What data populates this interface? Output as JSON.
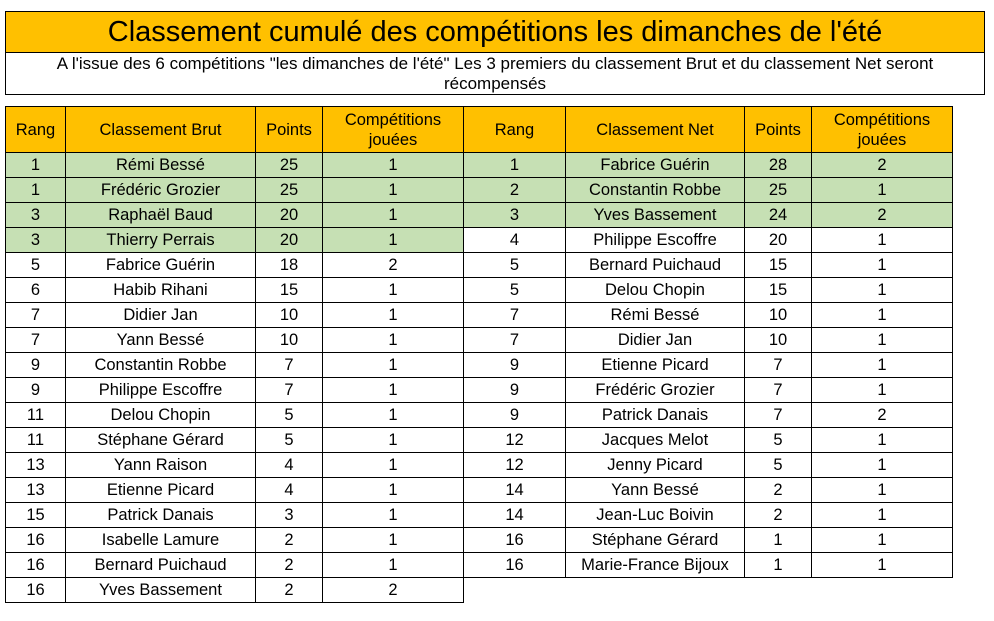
{
  "title": "Classement cumulé des compétitions les dimanches de l'été",
  "subtitle": "A l'issue des 6 compétitions \"les dimanches de l'été\" Les 3 premiers du classement Brut et du classement Net seront récompensés",
  "headers": {
    "rang": "Rang",
    "brut": "Classement Brut",
    "points": "Points",
    "comp": "Compétitions jouées",
    "rang_net": "Rang",
    "net": "Classement Net",
    "points_net": "Points",
    "comp_net": "Compétitions jouées"
  },
  "highlight_color": "#c6e0b4",
  "header_color": "#ffc000",
  "brut": [
    {
      "rang": "1",
      "nom": "Rémi Bessé",
      "points": "25",
      "comp": "1",
      "hl": true
    },
    {
      "rang": "1",
      "nom": "Frédéric Grozier",
      "points": "25",
      "comp": "1",
      "hl": true
    },
    {
      "rang": "3",
      "nom": "Raphaël Baud",
      "points": "20",
      "comp": "1",
      "hl": true
    },
    {
      "rang": "3",
      "nom": "Thierry Perrais",
      "points": "20",
      "comp": "1",
      "hl": true
    },
    {
      "rang": "5",
      "nom": "Fabrice Guérin",
      "points": "18",
      "comp": "2",
      "hl": false
    },
    {
      "rang": "6",
      "nom": "Habib Rihani",
      "points": "15",
      "comp": "1",
      "hl": false
    },
    {
      "rang": "7",
      "nom": "Didier Jan",
      "points": "10",
      "comp": "1",
      "hl": false
    },
    {
      "rang": "7",
      "nom": "Yann Bessé",
      "points": "10",
      "comp": "1",
      "hl": false
    },
    {
      "rang": "9",
      "nom": "Constantin Robbe",
      "points": "7",
      "comp": "1",
      "hl": false
    },
    {
      "rang": "9",
      "nom": "Philippe Escoffre",
      "points": "7",
      "comp": "1",
      "hl": false
    },
    {
      "rang": "11",
      "nom": "Delou Chopin",
      "points": "5",
      "comp": "1",
      "hl": false
    },
    {
      "rang": "11",
      "nom": "Stéphane Gérard",
      "points": "5",
      "comp": "1",
      "hl": false
    },
    {
      "rang": "13",
      "nom": "Yann Raison",
      "points": "4",
      "comp": "1",
      "hl": false
    },
    {
      "rang": "13",
      "nom": "Etienne Picard",
      "points": "4",
      "comp": "1",
      "hl": false
    },
    {
      "rang": "15",
      "nom": "Patrick Danais",
      "points": "3",
      "comp": "1",
      "hl": false
    },
    {
      "rang": "16",
      "nom": "Isabelle Lamure",
      "points": "2",
      "comp": "1",
      "hl": false
    },
    {
      "rang": "16",
      "nom": "Bernard Puichaud",
      "points": "2",
      "comp": "1",
      "hl": false
    },
    {
      "rang": "16",
      "nom": "Yves Bassement",
      "points": "2",
      "comp": "2",
      "hl": false
    }
  ],
  "net": [
    {
      "rang": "1",
      "nom": "Fabrice Guérin",
      "points": "28",
      "comp": "2",
      "hl": true
    },
    {
      "rang": "2",
      "nom": "Constantin Robbe",
      "points": "25",
      "comp": "1",
      "hl": true
    },
    {
      "rang": "3",
      "nom": "Yves Bassement",
      "points": "24",
      "comp": "2",
      "hl": true
    },
    {
      "rang": "4",
      "nom": "Philippe Escoffre",
      "points": "20",
      "comp": "1",
      "hl": false
    },
    {
      "rang": "5",
      "nom": "Bernard Puichaud",
      "points": "15",
      "comp": "1",
      "hl": false
    },
    {
      "rang": "5",
      "nom": "Delou Chopin",
      "points": "15",
      "comp": "1",
      "hl": false
    },
    {
      "rang": "7",
      "nom": "Rémi Bessé",
      "points": "10",
      "comp": "1",
      "hl": false
    },
    {
      "rang": "7",
      "nom": "Didier Jan",
      "points": "10",
      "comp": "1",
      "hl": false
    },
    {
      "rang": "9",
      "nom": "Etienne Picard",
      "points": "7",
      "comp": "1",
      "hl": false
    },
    {
      "rang": "9",
      "nom": "Frédéric Grozier",
      "points": "7",
      "comp": "1",
      "hl": false
    },
    {
      "rang": "9",
      "nom": "Patrick Danais",
      "points": "7",
      "comp": "2",
      "hl": false
    },
    {
      "rang": "12",
      "nom": "Jacques Melot",
      "points": "5",
      "comp": "1",
      "hl": false
    },
    {
      "rang": "12",
      "nom": "Jenny Picard",
      "points": "5",
      "comp": "1",
      "hl": false
    },
    {
      "rang": "14",
      "nom": "Yann Bessé",
      "points": "2",
      "comp": "1",
      "hl": false
    },
    {
      "rang": "14",
      "nom": "Jean-Luc Boivin",
      "points": "2",
      "comp": "1",
      "hl": false
    },
    {
      "rang": "16",
      "nom": "Stéphane Gérard",
      "points": "1",
      "comp": "1",
      "hl": false
    },
    {
      "rang": "16",
      "nom": "Marie-France Bijoux",
      "points": "1",
      "comp": "1",
      "hl": false
    }
  ]
}
